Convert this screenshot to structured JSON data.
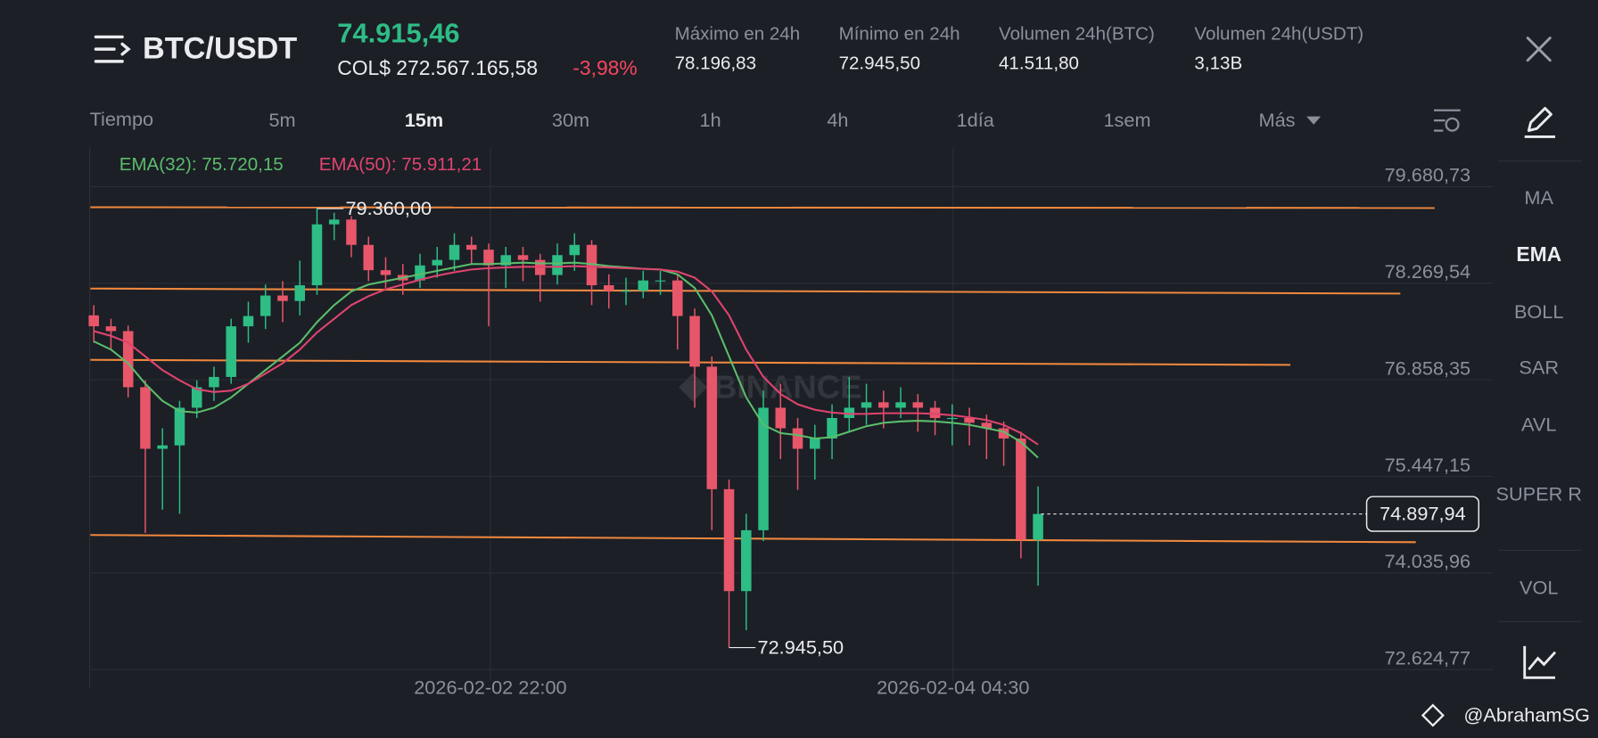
{
  "header": {
    "pair": "BTC/USDT",
    "price": "74.915,46",
    "local_price": "COL$ 272.567.165,58",
    "change": "-3,98%",
    "stats": [
      {
        "label": "Máximo en 24h",
        "value": "78.196,83"
      },
      {
        "label": "Mínimo en 24h",
        "value": "72.945,50"
      },
      {
        "label": "Volumen 24h(BTC)",
        "value": "41.511,80"
      },
      {
        "label": "Volumen 24h(USDT)",
        "value": "3,13B"
      }
    ]
  },
  "timeframes": {
    "label": "Tiempo",
    "options": [
      "5m",
      "15m",
      "30m",
      "1h",
      "4h",
      "1día",
      "1sem",
      "Más"
    ],
    "active": 1
  },
  "indicators": {
    "options": [
      "MA",
      "EMA",
      "BOLL",
      "SAR",
      "AVL",
      "SUPER R",
      "VOL"
    ],
    "active": 1
  },
  "watermark": "BINANCE",
  "credit": "@AbrahamSG",
  "chart_data": {
    "type": "candlestick",
    "up_color": "#2dbd85",
    "down_color": "#e8566a",
    "grid": true,
    "x": [
      0,
      1,
      2,
      3,
      4,
      5,
      6,
      7,
      8,
      9,
      10,
      11,
      12,
      13,
      14,
      15,
      16,
      17,
      18,
      19,
      20,
      21,
      22,
      23,
      24,
      25,
      26,
      27,
      28,
      29,
      30,
      31,
      32,
      33,
      34,
      35,
      36,
      37,
      38,
      39,
      40,
      41,
      42,
      43,
      44,
      45,
      46,
      47,
      48,
      49,
      50,
      51,
      52,
      53,
      54,
      55
    ],
    "open": [
      77800,
      77640,
      77570,
      76750,
      75850,
      75900,
      76450,
      76750,
      76900,
      77640,
      77790,
      78090,
      78010,
      78240,
      79130,
      79200,
      78830,
      78460,
      78390,
      78310,
      78530,
      78610,
      78830,
      78760,
      78530,
      78680,
      78610,
      78390,
      78680,
      78830,
      78240,
      78160,
      78160,
      78310,
      78310,
      77790,
      77050,
      75260,
      73770,
      74660,
      76450,
      76150,
      75850,
      76000,
      76300,
      76450,
      76530,
      76450,
      76530,
      76450,
      76300,
      76300,
      76230,
      76150,
      76000,
      74520
    ],
    "high": [
      77950,
      77750,
      77650,
      76850,
      76150,
      76550,
      76850,
      77050,
      77750,
      78000,
      78250,
      78300,
      78600,
      79360,
      79300,
      79250,
      78950,
      78650,
      78550,
      78700,
      78800,
      79000,
      78950,
      78850,
      78800,
      78800,
      78700,
      78850,
      79000,
      78900,
      78400,
      78350,
      78450,
      78450,
      78400,
      77900,
      77200,
      75400,
      74900,
      76700,
      76800,
      76300,
      76200,
      76500,
      76900,
      76800,
      76700,
      76750,
      76650,
      76550,
      76500,
      76450,
      76350,
      76250,
      76100,
      75300
    ],
    "low": [
      77400,
      77300,
      76600,
      74620,
      74960,
      74900,
      76300,
      76550,
      76800,
      77400,
      77600,
      77700,
      77800,
      78100,
      78900,
      78650,
      78300,
      78200,
      78100,
      78200,
      78350,
      78450,
      78550,
      77640,
      78200,
      78300,
      78000,
      78250,
      78450,
      77950,
      77900,
      77950,
      78050,
      78100,
      77300,
      76450,
      74660,
      72945.5,
      73200,
      74500,
      75700,
      75250,
      75400,
      75700,
      76100,
      76200,
      76150,
      76300,
      76100,
      76050,
      75900,
      75900,
      75700,
      75600,
      74250,
      73850
    ],
    "close": [
      77640,
      77570,
      76750,
      75850,
      75900,
      76450,
      76750,
      76900,
      77640,
      77790,
      78090,
      78010,
      78240,
      79130,
      79200,
      78830,
      78460,
      78390,
      78310,
      78530,
      78610,
      78830,
      78760,
      78530,
      78680,
      78610,
      78390,
      78680,
      78830,
      78240,
      78160,
      78160,
      78310,
      78310,
      77790,
      77050,
      75260,
      73770,
      74660,
      76450,
      76150,
      75850,
      76000,
      76300,
      76450,
      76530,
      76450,
      76530,
      76450,
      76300,
      76300,
      76230,
      76150,
      76000,
      74520,
      74897.94
    ],
    "series": [
      {
        "name": "EMA(32): 75.720,15",
        "color": "#5bbd6b",
        "values": [
          77420,
          77300,
          77100,
          76800,
          76550,
          76400,
          76380,
          76450,
          76600,
          76800,
          77000,
          77200,
          77400,
          77700,
          77950,
          78150,
          78250,
          78300,
          78350,
          78400,
          78450,
          78500,
          78550,
          78550,
          78560,
          78570,
          78560,
          78560,
          78570,
          78550,
          78520,
          78500,
          78480,
          78470,
          78400,
          78200,
          77800,
          77200,
          76600,
          76200,
          76080,
          76050,
          76000,
          76020,
          76100,
          76180,
          76230,
          76250,
          76260,
          76250,
          76230,
          76200,
          76150,
          76100,
          75950,
          75720.15
        ]
      },
      {
        "name": "EMA(50): 75.911,21",
        "color": "#e0446f",
        "values": [
          77570,
          77500,
          77400,
          77200,
          77000,
          76850,
          76720,
          76680,
          76700,
          76800,
          76950,
          77100,
          77300,
          77550,
          77750,
          77950,
          78080,
          78180,
          78250,
          78320,
          78380,
          78430,
          78470,
          78490,
          78500,
          78510,
          78510,
          78510,
          78520,
          78510,
          78500,
          78490,
          78480,
          78470,
          78440,
          78350,
          78150,
          77800,
          77300,
          76900,
          76650,
          76500,
          76420,
          76380,
          76360,
          76360,
          76370,
          76370,
          76370,
          76360,
          76340,
          76310,
          76270,
          76200,
          76080,
          75911.21
        ]
      }
    ],
    "trend_lines": [
      {
        "color": "#f0883e",
        "x": [
          -0.2,
          78.1
        ],
        "y": [
          79380,
          79370
        ]
      },
      {
        "color": "#f0883e",
        "x": [
          -0.2,
          76.1
        ],
        "y": [
          78192,
          78118
        ]
      },
      {
        "color": "#f0883e",
        "x": [
          -0.2,
          69.7
        ],
        "y": [
          77150,
          77076
        ]
      },
      {
        "color": "#f0883e",
        "x": [
          -0.2,
          77.0
        ],
        "y": [
          74590,
          74485
        ]
      }
    ],
    "annotations": [
      {
        "x": 13,
        "value": 79360,
        "label": "79.360,00"
      },
      {
        "x": 37,
        "value": 72945.5,
        "label": "72.945,50"
      }
    ],
    "last_price": {
      "value": 74897.94,
      "label": "74.897,94"
    },
    "xlim": [
      -0.24,
      81.5
    ],
    "ylim": [
      72461.0,
      80246.4
    ],
    "xticks": [
      {
        "value": 23.1,
        "label": "2026-02-02 22:00"
      },
      {
        "value": 50.05,
        "label": "2026-02-04 04:30"
      }
    ],
    "yticks": [
      {
        "value": 79680.73,
        "label": "79.680,73"
      },
      {
        "value": 78269.54,
        "label": "78.269,54"
      },
      {
        "value": 76858.35,
        "label": "76.858,35"
      },
      {
        "value": 75447.15,
        "label": "75.447,15"
      },
      {
        "value": 74035.96,
        "label": "74.035,96"
      },
      {
        "value": 72624.77,
        "label": "72.624,77"
      }
    ]
  }
}
